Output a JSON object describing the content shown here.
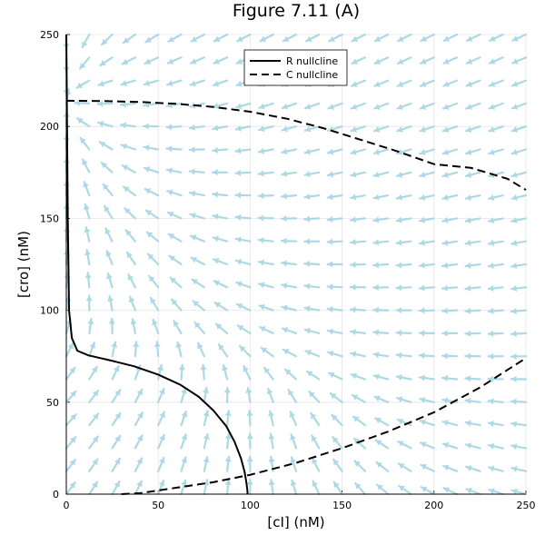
{
  "chart_data": {
    "type": "line",
    "title": "Figure 7.11 (A)",
    "xlabel": "[cI] (nM)",
    "ylabel": "[cro] (nM)",
    "xlim": [
      0,
      250
    ],
    "ylim": [
      0,
      250
    ],
    "xticks": [
      "0",
      "50",
      "100",
      "150",
      "200",
      "250"
    ],
    "yticks": [
      "0",
      "50",
      "100",
      "150",
      "200",
      "250"
    ],
    "grid": true,
    "legend_position": "top-right",
    "vector_field": {
      "color": "#add8e6",
      "description": "direction field of the cI–cro system sampled on a 12.5 nM grid"
    },
    "series": [
      {
        "name": "R nullcline",
        "style": "solid",
        "color": "#000000",
        "x": [
          0,
          0.4,
          0.8,
          1.5,
          3,
          6,
          12,
          25,
          37,
          50,
          62,
          72,
          80,
          87,
          91.5,
          95,
          97,
          98,
          98.5,
          98.6
        ],
        "y": [
          250,
          200,
          150,
          100,
          85,
          78,
          75.5,
          72.5,
          69.5,
          65,
          59.5,
          53,
          45.5,
          37,
          28.5,
          19.5,
          12,
          6,
          2,
          0
        ]
      },
      {
        "name": "C nullcline",
        "style": "dashed",
        "color": "#000000",
        "upper": {
          "x": [
            0,
            20,
            40,
            60,
            80,
            100,
            120,
            140,
            160,
            180,
            200,
            220,
            240,
            250
          ],
          "y": [
            214,
            213.8,
            213.3,
            212.3,
            210.6,
            208,
            204.2,
            199,
            192.8,
            186.5,
            179.5,
            177.5,
            171.5,
            165.5
          ]
        },
        "lower": {
          "x": [
            30,
            40,
            60,
            80,
            100,
            125,
            150,
            175,
            200,
            225,
            250
          ],
          "y": [
            0,
            0.5,
            3.5,
            6.5,
            10.5,
            17,
            25,
            34,
            44.5,
            58,
            74
          ]
        }
      }
    ]
  }
}
